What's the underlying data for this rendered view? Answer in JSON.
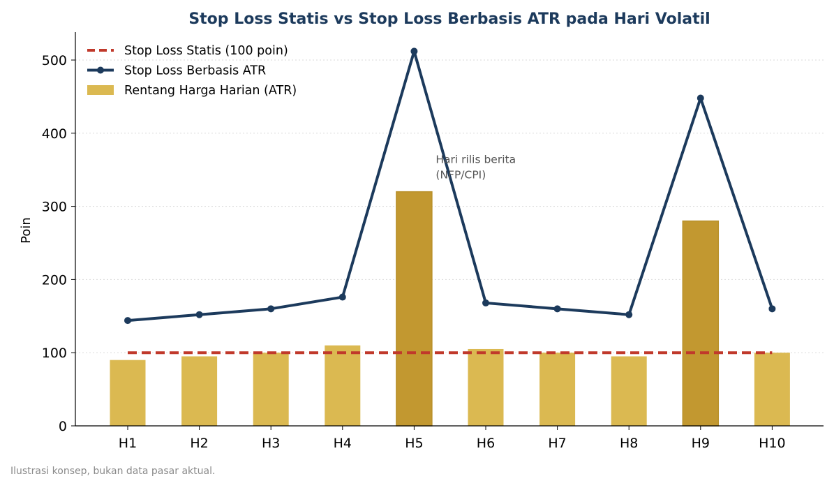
{
  "chart_data": {
    "type": "bar",
    "title": "Stop Loss Statis vs Stop Loss Berbasis ATR pada Hari Volatil",
    "xlabel": "",
    "ylabel": "Poin",
    "categories": [
      "H1",
      "H2",
      "H3",
      "H4",
      "H5",
      "H6",
      "H7",
      "H8",
      "H9",
      "H10"
    ],
    "ylim": [
      0,
      540
    ],
    "yticks": [
      0,
      100,
      200,
      300,
      400,
      500
    ],
    "grid": "horizontal dotted",
    "legend_position": "top-left",
    "series": [
      {
        "name": "Stop Loss Statis (100 poin)",
        "type": "line",
        "style": "dashed",
        "color": "#c0392b",
        "values": [
          100,
          100,
          100,
          100,
          100,
          100,
          100,
          100,
          100,
          100
        ]
      },
      {
        "name": "Stop Loss Berbasis ATR",
        "type": "line",
        "style": "solid-markers",
        "color": "#1c3a5c",
        "values": [
          144,
          152,
          160,
          176,
          512,
          168,
          160,
          152,
          448,
          160
        ]
      },
      {
        "name": "Rentang Harga Harian (ATR)",
        "type": "bar",
        "color": "#dbb951",
        "highlight_color": "#c29830",
        "highlight_indices": [
          4,
          8
        ],
        "values": [
          90,
          95,
          100,
          110,
          320,
          105,
          100,
          95,
          280,
          100
        ]
      }
    ],
    "annotation": {
      "lines": [
        "Hari rilis berita",
        "(NFP/CPI)"
      ],
      "x": "H5",
      "y": 342
    }
  },
  "footnote": "Ilustrasi konsep, bukan data pasar aktual."
}
